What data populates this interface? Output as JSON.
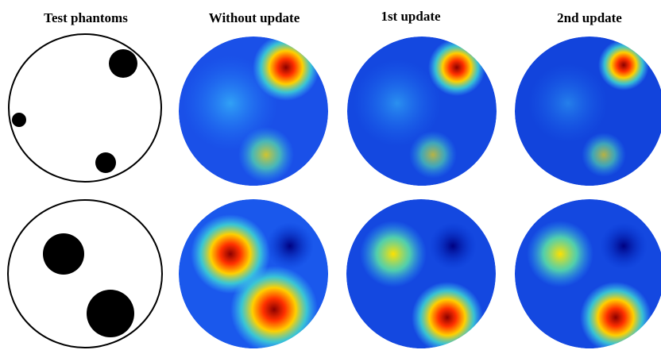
{
  "headers": [
    "Test phantoms",
    "Without update",
    "1st update",
    "2nd update"
  ]
}
